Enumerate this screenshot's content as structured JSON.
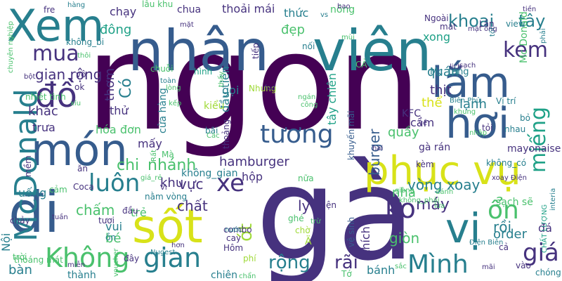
{
  "palette": {
    "purple": "#440154",
    "indigo": "#46327e",
    "blue": "#365c8d",
    "teal": "#277f8e",
    "green": "#1fa187",
    "lime": "#4ac16d",
    "yellowgreen": "#a0da39",
    "yellow": "#d8e219"
  },
  "words": [
    {
      "text": "ngon",
      "color": "purple"
    },
    {
      "text": "gà",
      "color": "indigo"
    },
    {
      "text": "nhân",
      "color": "blue"
    },
    {
      "text": "viên",
      "color": "teal"
    },
    {
      "text": "Xem",
      "color": "teal"
    },
    {
      "text": "món",
      "color": "blue"
    },
    {
      "text": "sốt",
      "color": "yellow"
    },
    {
      "text": "phục vụ",
      "color": "yellow"
    },
    {
      "text": "hơi",
      "color": "blue"
    },
    {
      "text": "lắm",
      "color": "blue"
    },
    {
      "text": "đi",
      "color": "blue"
    },
    {
      "text": "vị",
      "color": "teal"
    },
    {
      "text": "tương",
      "color": "blue"
    },
    {
      "text": "McDonald",
      "color": "teal"
    },
    {
      "text": "xe",
      "color": "indigo"
    },
    {
      "text": "luôn",
      "color": "teal"
    },
    {
      "text": "đồ",
      "color": "indigo"
    },
    {
      "text": "mua",
      "color": "indigo"
    },
    {
      "text": "Không",
      "color": "lime"
    },
    {
      "text": "gian",
      "color": "teal"
    },
    {
      "text": "Mình",
      "color": "teal"
    },
    {
      "text": "ko",
      "color": "indigo"
    },
    {
      "text": "ổn",
      "color": "lime"
    },
    {
      "text": "giá",
      "color": "indigo"
    },
    {
      "text": "miếng",
      "color": "green"
    },
    {
      "text": "kem",
      "color": "indigo"
    },
    {
      "text": "khoai",
      "color": "teal"
    },
    {
      "text": "tây",
      "color": "teal"
    },
    {
      "text": "rộng",
      "color": "teal"
    },
    {
      "text": "rãi",
      "color": "indigo"
    },
    {
      "text": "burger",
      "color": "blue"
    },
    {
      "text": "chi",
      "color": "lime"
    },
    {
      "text": "nhánh",
      "color": "lime"
    },
    {
      "text": "hamburger",
      "color": "indigo"
    },
    {
      "text": "chấm",
      "color": "lime"
    },
    {
      "text": "ớt",
      "color": "yellowgreen"
    },
    {
      "text": "thích",
      "color": "indigo"
    },
    {
      "text": "máy",
      "color": "indigo"
    },
    {
      "text": "đông",
      "color": "green"
    },
    {
      "text": "chạy",
      "color": "indigo"
    },
    {
      "text": "chua",
      "color": "indigo"
    },
    {
      "text": "thoải mái",
      "color": "indigo"
    },
    {
      "text": "đẹp",
      "color": "lime"
    },
    {
      "text": "thức",
      "color": "teal"
    },
    {
      "text": "nóng",
      "color": "lime"
    },
    {
      "text": "xong",
      "color": "green"
    },
    {
      "text": "quán",
      "color": "teal"
    },
    {
      "text": "thịt",
      "color": "indigo"
    },
    {
      "text": "thể",
      "color": "yellow"
    },
    {
      "text": "lạnh",
      "color": "teal"
    },
    {
      "text": "cầm",
      "color": "indigo"
    },
    {
      "text": "Mc",
      "color": "teal"
    },
    {
      "text": "tầng",
      "color": "teal"
    },
    {
      "text": "gian rộng",
      "color": "indigo"
    },
    {
      "text": "khác",
      "color": "indigo"
    },
    {
      "text": "trưa",
      "color": "indigo"
    },
    {
      "text": "thơm",
      "color": "indigo"
    },
    {
      "text": "Có",
      "color": "teal"
    },
    {
      "text": "cửa hàng",
      "color": "teal"
    },
    {
      "text": "thử",
      "color": "indigo"
    },
    {
      "text": "hóa đơn",
      "color": "lime"
    },
    {
      "text": "mấy",
      "color": "indigo"
    },
    {
      "text": "gọi",
      "color": "teal"
    },
    {
      "text": "đầu tiên",
      "color": "teal"
    },
    {
      "text": "tây chiên",
      "color": "green"
    },
    {
      "text": "quầy",
      "color": "lime"
    },
    {
      "text": "hộp",
      "color": "indigo"
    },
    {
      "text": "vực",
      "color": "indigo"
    },
    {
      "text": "khu",
      "color": "indigo"
    },
    {
      "text": "nhà",
      "color": "lime"
    },
    {
      "text": "vòng xoay",
      "color": "teal"
    },
    {
      "text": "chất",
      "color": "indigo"
    },
    {
      "text": "ly",
      "color": "indigo"
    },
    {
      "text": "rồi",
      "color": "teal"
    },
    {
      "text": "giòn",
      "color": "lime"
    },
    {
      "text": "order",
      "color": "teal"
    },
    {
      "text": "bánh",
      "color": "teal"
    },
    {
      "text": "vui",
      "color": "teal"
    },
    {
      "text": "bé",
      "color": "lime"
    },
    {
      "text": "Nội",
      "color": "teal"
    },
    {
      "text": "bàn",
      "color": "teal"
    },
    {
      "text": "thành",
      "color": "teal"
    },
    {
      "text": "chiên",
      "color": "teal"
    },
    {
      "text": "trẻ",
      "color": "lime"
    },
    {
      "text": "uống",
      "color": "teal"
    },
    {
      "text": "kiểu",
      "color": "yellowgreen"
    },
    {
      "text": "KFC",
      "color": "indigo"
    },
    {
      "text": "Mc Donald",
      "color": "lime"
    },
    {
      "text": "đá",
      "color": "indigo"
    },
    {
      "text": "gà rán",
      "color": "indigo"
    },
    {
      "text": "mayonaise",
      "color": "indigo"
    },
    {
      "text": "sạch sẽ",
      "color": "lime"
    },
    {
      "text": "không_gian",
      "color": "teal"
    },
    {
      "text": "combo",
      "color": "indigo"
    },
    {
      "text": "Hôm",
      "color": "indigo"
    },
    {
      "text": "đây",
      "color": "indigo"
    },
    {
      "text": "cay",
      "color": "indigo"
    },
    {
      "text": "tươi",
      "color": "indigo"
    },
    {
      "text": "Lần",
      "color": "indigo"
    },
    {
      "text": "view",
      "color": "teal"
    },
    {
      "text": "Ngoài",
      "color": "indigo"
    },
    {
      "text": "bỏ",
      "color": "teal"
    },
    {
      "text": "Vị trí",
      "color": "teal"
    },
    {
      "text": "Coca",
      "color": "indigo"
    },
    {
      "text": "nhiệt tình",
      "color": "lime"
    },
    {
      "text": "hình",
      "color": "green"
    },
    {
      "text": "Nhưng",
      "color": "yellowgreen"
    },
    {
      "text": "CẢ",
      "color": "lime"
    },
    {
      "text": "Tớ",
      "color": "lime"
    },
    {
      "text": "phí",
      "color": "yellowgreen"
    },
    {
      "text": "chờ",
      "color": "yellowgreen"
    },
    {
      "text": "tiện",
      "color": "indigo"
    },
    {
      "text": "nữa",
      "color": "lime"
    },
    {
      "text": "ghé",
      "color": "lime"
    },
    {
      "text": "xoay Điện",
      "color": "indigo"
    },
    {
      "text": "không_có",
      "color": "teal"
    },
    {
      "text": "nhau",
      "color": "teal"
    },
    {
      "text": "tỏi",
      "color": "indigo"
    },
    {
      "text": "chóng",
      "color": "teal"
    },
    {
      "text": "vào",
      "color": "indigo"
    },
    {
      "text": "cả",
      "color": "indigo"
    },
    {
      "text": "nhập",
      "color": "lime"
    },
    {
      "text": "phải",
      "color": "teal"
    },
    {
      "text": "ok",
      "color": "indigo"
    },
    {
      "text": "vô",
      "color": "indigo"
    },
    {
      "text": "Mà",
      "color": "lime"
    },
    {
      "text": "fre",
      "color": "indigo"
    },
    {
      "text": "không_bi",
      "color": "teal"
    },
    {
      "text": "chuỗi",
      "color": "lime"
    },
    {
      "text": "nối",
      "color": "teal"
    },
    {
      "text": "lẫu khu",
      "color": "lime"
    },
    {
      "text": "CHẤT LƯỢNG",
      "color": "green"
    },
    {
      "text": "Điện Biên",
      "color": "teal"
    },
    {
      "text": "Biên Phủ",
      "color": "teal"
    },
    {
      "text": "khuyến mãi",
      "color": "blue"
    },
    {
      "text": "vệ sinh",
      "color": "blue"
    },
    {
      "text": "thoáng mát",
      "color": "lime"
    },
    {
      "text": "chuyên nghiệp",
      "color": "lime"
    },
    {
      "text": "cảm",
      "color": "lime"
    },
    {
      "text": "nằm vòng",
      "color": "teal"
    },
    {
      "text": "đầu",
      "color": "indigo"
    },
    {
      "text": "hơn",
      "color": "indigo"
    },
    {
      "text": "miễn",
      "color": "indigo"
    },
    {
      "text": "chảy",
      "color": "indigo"
    },
    {
      "text": "trời",
      "color": "lime"
    },
    {
      "text": "ăn",
      "color": "indigo"
    },
    {
      "text": "bãi",
      "color": "teal"
    },
    {
      "text": "Nugest",
      "color": "teal"
    },
    {
      "text": "nước",
      "color": "teal"
    },
    {
      "text": "ồn",
      "color": "teal"
    },
    {
      "text": "giá_rẻ",
      "color": "lime"
    },
    {
      "text": "mềm",
      "color": "indigo"
    },
    {
      "text": "kèm",
      "color": "indigo"
    },
    {
      "text": "hai",
      "color": "indigo"
    },
    {
      "text": "thoảng",
      "color": "indigo"
    },
    {
      "text": "Rất",
      "color": "lime"
    },
    {
      "text": "Các",
      "color": "lime"
    },
    {
      "text": "bột",
      "color": "indigo"
    },
    {
      "text": "xíu",
      "color": "lime"
    },
    {
      "text": "thôi",
      "color": "lime"
    },
    {
      "text": "lịch",
      "color": "indigo"
    },
    {
      "text": "sạch",
      "color": "indigo"
    },
    {
      "text": "tiếp",
      "color": "indigo"
    },
    {
      "text": "mát",
      "color": "indigo"
    },
    {
      "text": "toàn",
      "color": "teal"
    },
    {
      "text": "lòng",
      "color": "lime"
    },
    {
      "text": "thấy",
      "color": "lime"
    },
    {
      "text": "fod",
      "color": "indigo"
    },
    {
      "text": "ngán",
      "color": "lime"
    },
    {
      "text": "công",
      "color": "lime"
    },
    {
      "text": "khung",
      "color": "lime"
    },
    {
      "text": "lửa",
      "color": "lime"
    },
    {
      "text": "giòng",
      "color": "lime"
    },
    {
      "text": "đánh",
      "color": "lime"
    },
    {
      "text": "sắc",
      "color": "lime"
    },
    {
      "text": "trừ",
      "color": "lime"
    },
    {
      "text": "mãi",
      "color": "indigo"
    },
    {
      "text": "hàng",
      "color": "teal"
    },
    {
      "text": "vs",
      "color": "teal"
    },
    {
      "text": "bao",
      "color": "indigo"
    },
    {
      "text": "tốt",
      "color": "teal"
    },
    {
      "text": "mặt",
      "color": "indigo"
    },
    {
      "text": "tiền",
      "color": "indigo"
    },
    {
      "text": "mùi",
      "color": "lime"
    },
    {
      "text": "mặt ong",
      "color": "indigo"
    },
    {
      "text": "về",
      "color": "indigo"
    },
    {
      "text": "tuần",
      "color": "indigo"
    },
    {
      "text": "chẩn",
      "color": "lime"
    },
    {
      "text": "interia",
      "color": "teal"
    },
    {
      "text": "Vì",
      "color": "indigo"
    },
    {
      "text": "không_phải",
      "color": "lime"
    },
    {
      "text": "Ä",
      "color": "yellowgreen"
    },
    {
      "text": "voucher",
      "color": "lime"
    },
    {
      "text": "kếp",
      "color": "lime"
    }
  ]
}
